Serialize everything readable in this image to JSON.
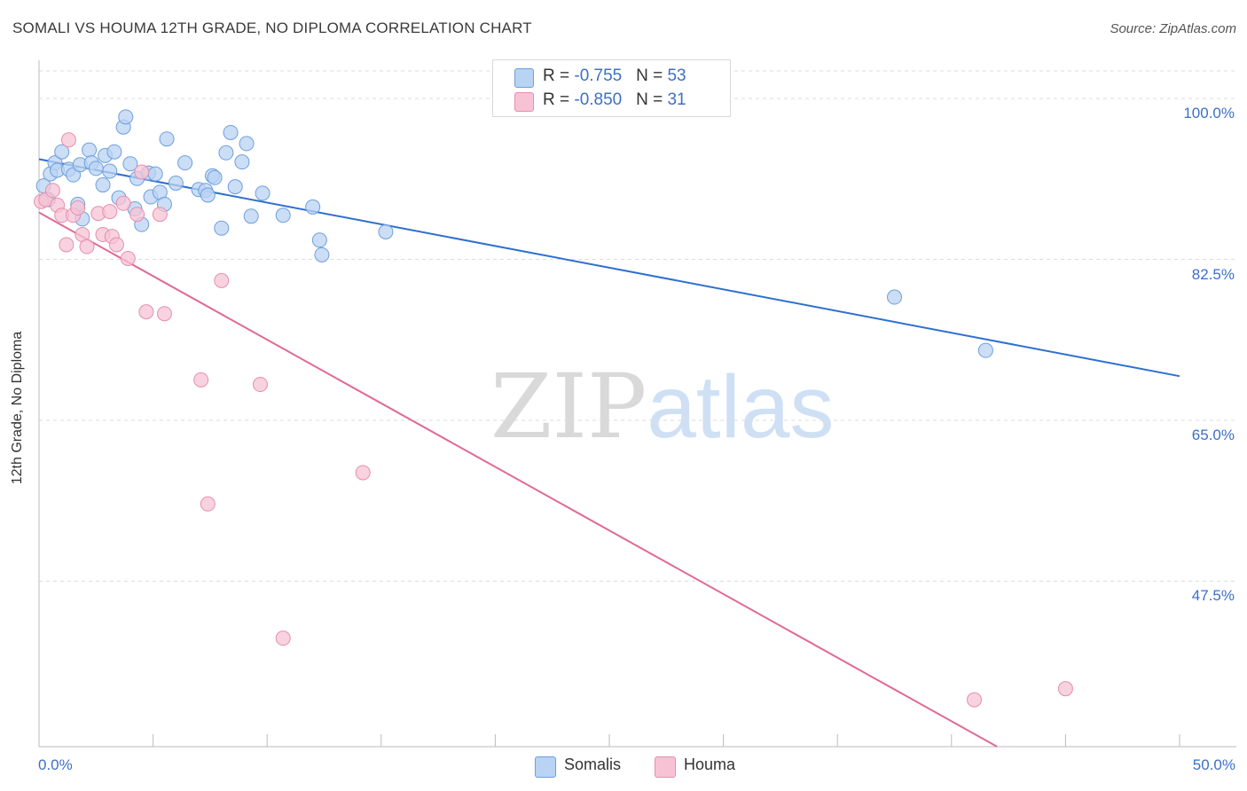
{
  "header": {
    "title": "SOMALI VS HOUMA 12TH GRADE, NO DIPLOMA CORRELATION CHART",
    "source": "Source: ZipAtlas.com"
  },
  "watermark": {
    "zip": "ZIP",
    "atlas": "atlas"
  },
  "legend": {
    "somalis": {
      "r_label": "R = ",
      "r_value": "-0.755",
      "n_label": "N = ",
      "n_value": "53"
    },
    "houma": {
      "r_label": "R = ",
      "r_value": "-0.850",
      "n_label": "N = ",
      "n_value": "31"
    }
  },
  "colors": {
    "somalis_fill": "#b9d3f3",
    "somalis_stroke": "#6d9fdc",
    "somalis_line": "#2f6fd0",
    "houma_fill": "#f7c3d4",
    "houma_stroke": "#e58fac",
    "houma_line": "#e06a96",
    "grid": "#dcdcdc",
    "axis_text": "#3d6fc8"
  },
  "chart_data": {
    "type": "scatter",
    "title": "SOMALI VS HOUMA 12TH GRADE, NO DIPLOMA CORRELATION CHART",
    "xlabel": "",
    "ylabel": "12th Grade, No Diploma",
    "xlim": [
      0,
      50
    ],
    "ylim": [
      29.5,
      103
    ],
    "x_tick_labels": [
      "0.0%",
      "50.0%"
    ],
    "y_ticks": [
      {
        "value": 100.0,
        "label": "100.0%"
      },
      {
        "value": 82.5,
        "label": "82.5%"
      },
      {
        "value": 65.0,
        "label": "65.0%"
      },
      {
        "value": 47.5,
        "label": "47.5%"
      }
    ],
    "grid": true,
    "legend_position": "bottom-center",
    "series": [
      {
        "name": "Somalis",
        "r": -0.755,
        "n": 53,
        "trend": {
          "x": [
            0,
            50
          ],
          "y": [
            93.4,
            69.8
          ]
        },
        "points": [
          [
            0.2,
            90.5
          ],
          [
            0.4,
            89.0
          ],
          [
            0.5,
            91.8
          ],
          [
            0.7,
            93.0
          ],
          [
            0.8,
            92.2
          ],
          [
            1.0,
            94.2
          ],
          [
            1.3,
            92.3
          ],
          [
            1.5,
            91.7
          ],
          [
            1.7,
            88.5
          ],
          [
            1.9,
            86.9
          ],
          [
            1.8,
            92.8
          ],
          [
            2.2,
            94.4
          ],
          [
            2.3,
            93.0
          ],
          [
            2.5,
            92.4
          ],
          [
            2.8,
            90.6
          ],
          [
            2.9,
            93.8
          ],
          [
            3.1,
            92.1
          ],
          [
            3.3,
            94.2
          ],
          [
            3.5,
            89.2
          ],
          [
            3.7,
            96.9
          ],
          [
            3.8,
            98.0
          ],
          [
            4.0,
            92.9
          ],
          [
            4.2,
            88.0
          ],
          [
            4.3,
            91.3
          ],
          [
            4.5,
            86.3
          ],
          [
            4.8,
            91.9
          ],
          [
            4.9,
            89.3
          ],
          [
            5.1,
            91.8
          ],
          [
            5.3,
            89.8
          ],
          [
            5.5,
            88.5
          ],
          [
            5.6,
            95.6
          ],
          [
            6.0,
            90.8
          ],
          [
            6.4,
            93.0
          ],
          [
            7.0,
            90.1
          ],
          [
            7.3,
            90.0
          ],
          [
            7.4,
            89.5
          ],
          [
            7.6,
            91.6
          ],
          [
            7.7,
            91.4
          ],
          [
            8.0,
            85.9
          ],
          [
            8.2,
            94.1
          ],
          [
            8.4,
            96.3
          ],
          [
            8.6,
            90.4
          ],
          [
            8.9,
            93.1
          ],
          [
            9.1,
            95.1
          ],
          [
            9.3,
            87.2
          ],
          [
            9.8,
            89.7
          ],
          [
            10.7,
            87.3
          ],
          [
            12.0,
            88.2
          ],
          [
            12.3,
            84.6
          ],
          [
            12.4,
            83.0
          ],
          [
            15.2,
            85.5
          ],
          [
            37.5,
            78.4
          ],
          [
            41.5,
            72.6
          ]
        ]
      },
      {
        "name": "Houma",
        "r": -0.85,
        "n": 31,
        "trend": {
          "x": [
            0,
            42
          ],
          "y": [
            87.6,
            29.5
          ]
        },
        "points": [
          [
            0.1,
            88.8
          ],
          [
            0.3,
            89.0
          ],
          [
            0.6,
            90.0
          ],
          [
            0.8,
            88.4
          ],
          [
            1.0,
            87.3
          ],
          [
            1.2,
            84.1
          ],
          [
            1.3,
            95.5
          ],
          [
            1.5,
            87.3
          ],
          [
            1.7,
            88.1
          ],
          [
            1.9,
            85.2
          ],
          [
            2.1,
            83.9
          ],
          [
            2.6,
            87.5
          ],
          [
            2.8,
            85.2
          ],
          [
            3.1,
            87.7
          ],
          [
            3.2,
            85.0
          ],
          [
            3.4,
            84.1
          ],
          [
            3.7,
            88.6
          ],
          [
            3.9,
            82.6
          ],
          [
            4.3,
            87.4
          ],
          [
            4.5,
            92.0
          ],
          [
            4.7,
            76.8
          ],
          [
            5.3,
            87.4
          ],
          [
            5.5,
            76.6
          ],
          [
            7.1,
            69.4
          ],
          [
            7.4,
            55.9
          ],
          [
            8.0,
            80.2
          ],
          [
            9.7,
            68.9
          ],
          [
            10.7,
            41.3
          ],
          [
            14.2,
            59.3
          ],
          [
            41.0,
            34.6
          ],
          [
            45.0,
            35.8
          ]
        ]
      }
    ]
  },
  "bottom_legend": [
    "Somalis",
    "Houma"
  ]
}
